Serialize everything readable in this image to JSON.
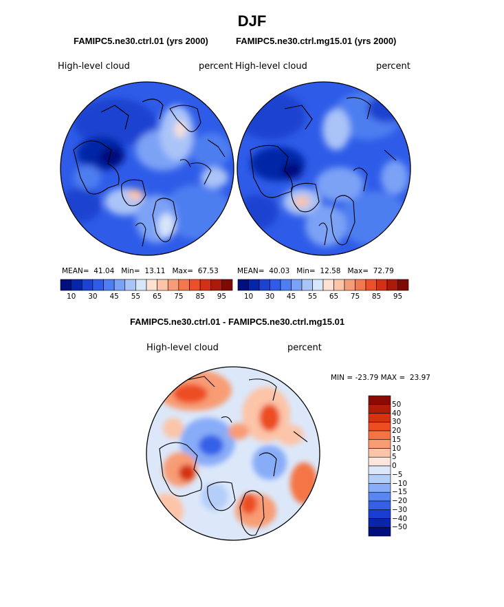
{
  "season": "DJF",
  "panel_left": {
    "title": "FAMIPC5.ne30.ctrl.01 (yrs 2000)",
    "variable": "High-level cloud",
    "units": "percent",
    "mean_label": "MEAN=",
    "mean": "41.04",
    "min_label": "Min=",
    "min": "13.11",
    "max_label": "Max=",
    "max": "67.53"
  },
  "panel_right": {
    "title": "FAMIPC5.ne30.ctrl.mg15.01 (yrs 2000)",
    "variable": "High-level cloud",
    "units": "percent",
    "mean_label": "MEAN=",
    "mean": "40.03",
    "min_label": "Min=",
    "min": "12.58",
    "max_label": "Max=",
    "max": "72.79"
  },
  "panel_diff": {
    "title": "FAMIPC5.ne30.ctrl.01 - FAMIPC5.ne30.ctrl.mg15.01",
    "variable": "High-level cloud",
    "units": "percent",
    "minmax_text": "MIN = -23.79 MAX =  23.97"
  },
  "colorbar_top": {
    "colors": [
      "#000e7e",
      "#0626a8",
      "#1c42d0",
      "#2e5ce8",
      "#4e7ef0",
      "#7ca2f6",
      "#aac4f8",
      "#d8e6fa",
      "#fde2d4",
      "#fcc4a8",
      "#f89c78",
      "#f4784e",
      "#ec5028",
      "#d43014",
      "#ac1a0a",
      "#7e0a04"
    ],
    "tick_labels": [
      "10",
      "30",
      "45",
      "55",
      "65",
      "75",
      "85",
      "95"
    ]
  },
  "colorbar_diff": {
    "colors": [
      "#8c0a04",
      "#b01c08",
      "#d43210",
      "#ec4e20",
      "#f47444",
      "#f89c74",
      "#fcc4a8",
      "#fde6dc",
      "#dce8fa",
      "#b4cefa",
      "#88acf8",
      "#5a86f2",
      "#3460e8",
      "#1a3ed0",
      "#0826a8",
      "#020e7e"
    ],
    "labels": [
      "50",
      "40",
      "30",
      "20",
      "15",
      "10",
      "5",
      "0",
      "-5",
      "-10",
      "-15",
      "-20",
      "-30",
      "-40",
      "-50"
    ]
  },
  "colors": {
    "background": "#ffffff",
    "text": "#000000",
    "coast": "#000000"
  }
}
